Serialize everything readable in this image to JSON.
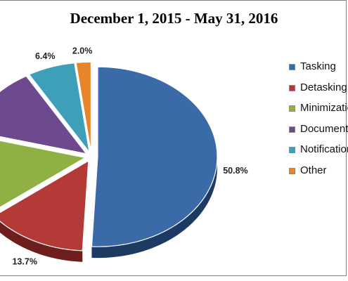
{
  "chart_data": {
    "type": "pie",
    "title": "December 1, 2015 - May 31, 2016",
    "slices": [
      {
        "label": "Tasking",
        "value": 50.8,
        "value_label": "50.8%",
        "color": "#3a6aa8",
        "dark": "#1d3a62"
      },
      {
        "label": "Detasking",
        "value": 13.7,
        "value_label": "13.7%",
        "color": "#b33a36",
        "dark": "#6e1f1d"
      },
      {
        "label": "Minimization",
        "value": 14.6,
        "value_label": "",
        "color": "#8fb043",
        "dark": "#5a7326"
      },
      {
        "label": "Documentation",
        "value": 12.5,
        "value_label": "",
        "color": "#6c4a8d",
        "dark": "#3f2856"
      },
      {
        "label": "Notification",
        "value": 6.4,
        "value_label": "6.4%",
        "color": "#3ea0b8",
        "dark": "#1f6575"
      },
      {
        "label": "Other",
        "value": 2.0,
        "value_label": "2.0%",
        "color": "#e8842a",
        "dark": "#a1541a"
      }
    ],
    "legend_position": "right"
  }
}
